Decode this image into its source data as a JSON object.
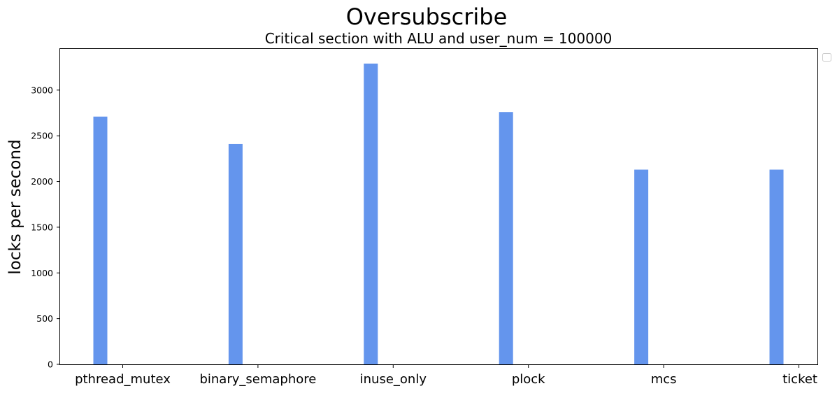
{
  "chart_data": {
    "type": "bar",
    "title": "Oversubscribe",
    "subtitle": "Critical section with ALU and user_num = 100000",
    "xlabel": "",
    "ylabel": "locks per second",
    "categories": [
      "pthread_mutex",
      "binary_semaphore",
      "inuse_only",
      "plock",
      "mcs",
      "ticket"
    ],
    "series": [
      {
        "values": [
          2710,
          2410,
          3290,
          2760,
          2130,
          2130
        ],
        "color": "#6495ED"
      }
    ],
    "yticks": [
      0,
      500,
      1000,
      1500,
      2000,
      2500,
      3000
    ],
    "ylim": [
      0,
      3450
    ],
    "grid": false,
    "legend": {
      "placement": "outside-top-right",
      "entries": []
    }
  }
}
